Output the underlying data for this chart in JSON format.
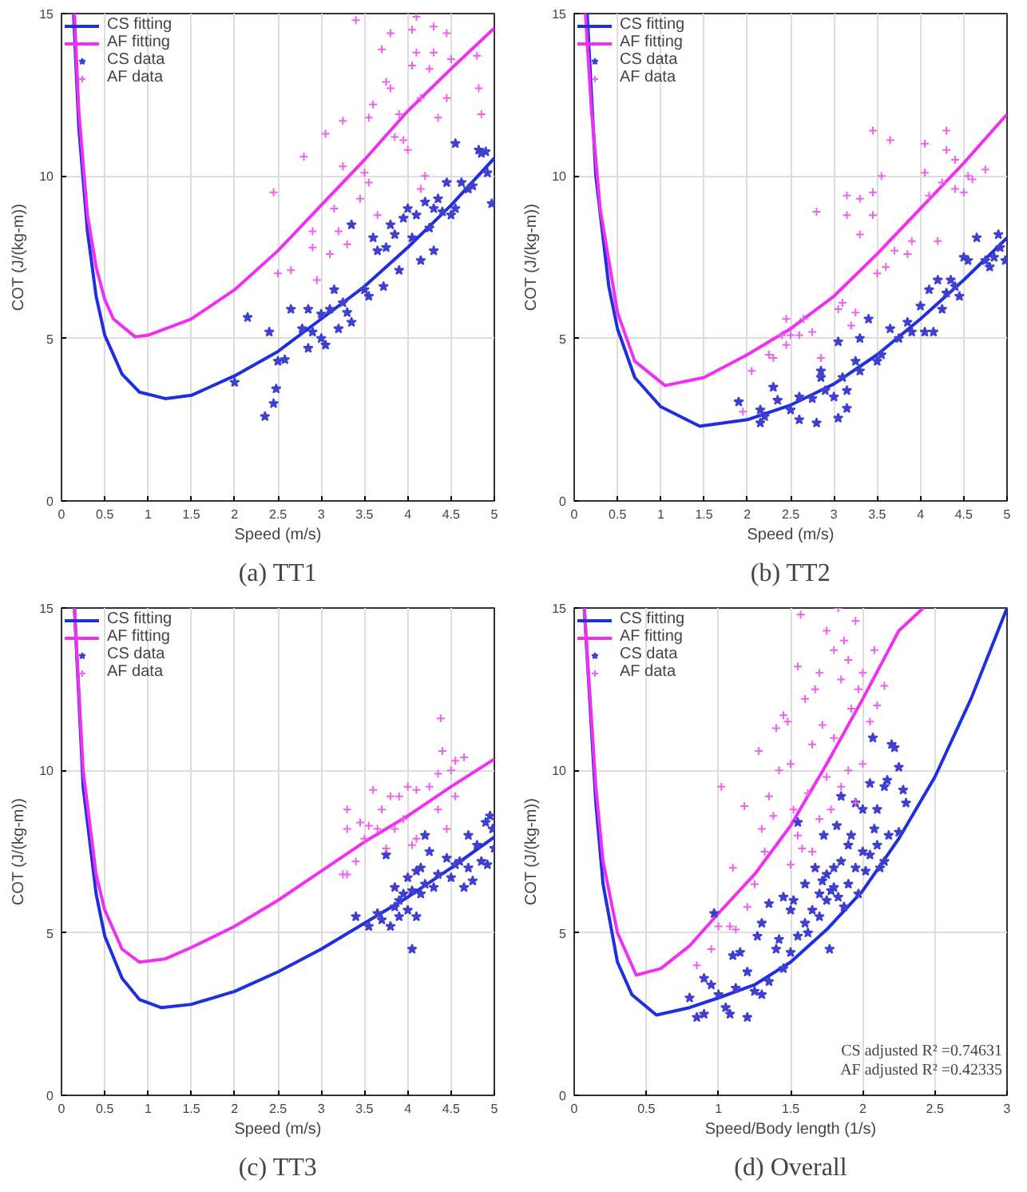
{
  "chart_data": [
    {
      "type": "scatter",
      "title": "(a) TT1",
      "xlabel": "Speed (m/s)",
      "ylabel": "COT (J/(kg-m))",
      "xlim": [
        0,
        5
      ],
      "ylim": [
        0,
        15
      ],
      "xticks": [
        0,
        0.5,
        1,
        1.5,
        2,
        2.5,
        3,
        3.5,
        4,
        4.5,
        5
      ],
      "yticks": [
        0,
        5,
        10,
        15
      ],
      "grid": true,
      "legend": "top left",
      "series": [
        {
          "name": "CS fitting",
          "type": "line",
          "color": "#1f2fe0",
          "x": [
            0.14,
            0.2,
            0.3,
            0.4,
            0.5,
            0.7,
            0.9,
            1.2,
            1.5,
            2,
            2.5,
            3,
            3.5,
            4,
            4.5,
            5
          ],
          "values": [
            15,
            11.5,
            8.3,
            6.3,
            5.1,
            3.9,
            3.35,
            3.15,
            3.25,
            3.85,
            4.6,
            5.6,
            6.6,
            7.8,
            9.1,
            10.55
          ]
        },
        {
          "name": "AF fitting",
          "type": "line",
          "color": "#f030f0",
          "x": [
            0.15,
            0.2,
            0.3,
            0.4,
            0.5,
            0.6,
            0.85,
            1,
            1.5,
            2,
            2.5,
            3,
            3.5,
            4,
            4.5,
            5
          ],
          "values": [
            15,
            12,
            8.8,
            7.2,
            6.2,
            5.6,
            5.05,
            5.1,
            5.6,
            6.5,
            7.7,
            9.1,
            10.5,
            12,
            13.3,
            14.55
          ]
        },
        {
          "name": "CS data",
          "type": "scatter",
          "marker": "star",
          "color": "#3f3fd0",
          "x": [
            2.0,
            2.15,
            2.35,
            2.4,
            2.45,
            2.48,
            2.5,
            2.58,
            2.65,
            2.78,
            2.85,
            2.85,
            2.9,
            3.0,
            3.0,
            3.05,
            3.1,
            3.15,
            3.2,
            3.25,
            3.3,
            3.35,
            3.35,
            3.5,
            3.55,
            3.6,
            3.65,
            3.72,
            3.75,
            3.8,
            3.85,
            3.9,
            3.95,
            4.0,
            4.05,
            4.1,
            4.15,
            4.2,
            4.25,
            4.3,
            4.3,
            4.35,
            4.4,
            4.45,
            4.5,
            4.55,
            4.55,
            4.62,
            4.7,
            4.75,
            4.82,
            4.85,
            4.9,
            4.92,
            4.97
          ],
          "values": [
            3.65,
            5.65,
            2.6,
            5.2,
            3.0,
            3.45,
            4.3,
            4.35,
            5.9,
            5.3,
            5.9,
            4.7,
            5.2,
            5.0,
            5.75,
            4.8,
            5.9,
            6.5,
            5.3,
            6.1,
            5.8,
            8.5,
            5.5,
            6.5,
            6.3,
            8.1,
            7.7,
            6.6,
            7.8,
            8.5,
            8.2,
            7.1,
            8.7,
            9.0,
            8.1,
            8.8,
            7.4,
            9.2,
            8.4,
            9.0,
            7.7,
            9.3,
            8.9,
            9.8,
            8.8,
            11.0,
            9.0,
            9.8,
            9.6,
            9.7,
            10.8,
            10.7,
            10.75,
            10.1,
            9.15
          ]
        },
        {
          "name": "AF data",
          "type": "scatter",
          "marker": "cross",
          "color": "#f060f0",
          "x": [
            2.45,
            2.5,
            2.65,
            2.8,
            2.9,
            2.9,
            2.95,
            3.05,
            3.1,
            3.15,
            3.2,
            3.25,
            3.25,
            3.3,
            3.4,
            3.45,
            3.5,
            3.55,
            3.55,
            3.6,
            3.65,
            3.7,
            3.75,
            3.8,
            3.8,
            3.85,
            3.9,
            3.95,
            4.0,
            4.05,
            4.05,
            4.1,
            4.1,
            4.15,
            4.15,
            4.2,
            4.25,
            4.3,
            4.3,
            4.35,
            4.45,
            4.45,
            4.5,
            4.8,
            4.82,
            4.85
          ],
          "values": [
            9.5,
            7.0,
            7.1,
            10.6,
            8.3,
            7.8,
            6.8,
            11.3,
            7.6,
            9.0,
            8.3,
            11.7,
            10.3,
            7.9,
            14.8,
            9.3,
            10.1,
            11.8,
            9.8,
            12.2,
            8.8,
            13.9,
            12.9,
            14.4,
            12.7,
            11.2,
            11.9,
            11.1,
            10.8,
            14.5,
            13.4,
            14.9,
            13.8,
            12.4,
            9.6,
            10.0,
            13.3,
            14.6,
            13.8,
            11.8,
            14.4,
            12.4,
            13.6,
            13.7,
            12.7,
            11.9
          ]
        }
      ]
    },
    {
      "type": "scatter",
      "title": "(b) TT2",
      "xlabel": "Speed (m/s)",
      "ylabel": "COT (J/(kg-m))",
      "xlim": [
        0,
        5
      ],
      "ylim": [
        0,
        15
      ],
      "xticks": [
        0,
        0.5,
        1,
        1.5,
        2,
        2.5,
        3,
        3.5,
        4,
        4.5,
        5
      ],
      "yticks": [
        0,
        5,
        10,
        15
      ],
      "grid": true,
      "legend": "top left",
      "series": [
        {
          "name": "CS fitting",
          "type": "line",
          "color": "#1f2fe0",
          "x": [
            0.15,
            0.25,
            0.4,
            0.5,
            0.7,
            1,
            1.45,
            2,
            2.5,
            3,
            3.5,
            4,
            4.5,
            5
          ],
          "values": [
            15,
            10,
            6.6,
            5.3,
            3.8,
            2.9,
            2.3,
            2.5,
            2.95,
            3.6,
            4.5,
            5.6,
            6.8,
            8.1
          ]
        },
        {
          "name": "AF fitting",
          "type": "line",
          "color": "#f030f0",
          "x": [
            0.13,
            0.2,
            0.3,
            0.5,
            0.7,
            1.05,
            1.5,
            2,
            2.5,
            3,
            3.5,
            4,
            4.5,
            5
          ],
          "values": [
            15,
            12,
            9,
            5.8,
            4.3,
            3.55,
            3.8,
            4.5,
            5.3,
            6.3,
            7.6,
            9.0,
            10.4,
            11.9
          ]
        },
        {
          "name": "CS data",
          "type": "scatter",
          "marker": "star",
          "color": "#3f3fd0",
          "x": [
            1.9,
            2.15,
            2.15,
            2.2,
            2.3,
            2.35,
            2.5,
            2.6,
            2.6,
            2.75,
            2.8,
            2.85,
            2.85,
            2.9,
            3.0,
            3.05,
            3.05,
            3.1,
            3.15,
            3.15,
            3.25,
            3.3,
            3.3,
            3.4,
            3.5,
            3.55,
            3.65,
            3.75,
            3.85,
            3.9,
            4.0,
            4.05,
            4.1,
            4.15,
            4.2,
            4.25,
            4.3,
            4.35,
            4.4,
            4.45,
            4.5,
            4.55,
            4.65,
            4.75,
            4.8,
            4.85,
            4.9,
            4.92,
            4.98
          ],
          "values": [
            3.05,
            2.8,
            2.4,
            2.6,
            3.5,
            3.1,
            2.8,
            2.5,
            3.2,
            3.15,
            2.4,
            3.8,
            4.0,
            3.4,
            3.2,
            4.9,
            2.55,
            3.8,
            2.85,
            3.4,
            4.3,
            5.0,
            4.0,
            5.6,
            4.3,
            4.5,
            5.3,
            5.0,
            5.5,
            5.2,
            6.0,
            5.2,
            6.5,
            5.2,
            6.8,
            5.9,
            6.4,
            6.8,
            6.6,
            6.3,
            7.5,
            7.4,
            8.1,
            7.4,
            7.2,
            7.5,
            8.2,
            7.8,
            7.4
          ]
        },
        {
          "name": "AF data",
          "type": "scatter",
          "marker": "cross",
          "color": "#f060f0",
          "x": [
            1.95,
            2.05,
            2.25,
            2.3,
            2.4,
            2.45,
            2.45,
            2.5,
            2.6,
            2.65,
            2.75,
            2.8,
            2.85,
            3.05,
            3.1,
            3.15,
            3.15,
            3.2,
            3.25,
            3.3,
            3.3,
            3.45,
            3.45,
            3.45,
            3.5,
            3.55,
            3.6,
            3.65,
            3.7,
            3.85,
            3.9,
            4.05,
            4.05,
            4.1,
            4.2,
            4.25,
            4.3,
            4.3,
            4.4,
            4.4,
            4.5,
            4.55,
            4.6,
            4.75
          ],
          "values": [
            2.75,
            4.0,
            4.5,
            4.4,
            5.1,
            5.6,
            4.8,
            5.1,
            5.1,
            5.6,
            5.2,
            8.9,
            4.4,
            5.9,
            6.1,
            8.8,
            9.4,
            5.4,
            5.8,
            8.2,
            9.3,
            11.4,
            9.5,
            8.8,
            7.0,
            10.0,
            7.2,
            11.1,
            7.7,
            7.6,
            8.0,
            11.0,
            10.1,
            9.4,
            8.0,
            9.8,
            11.4,
            10.8,
            10.5,
            9.6,
            9.5,
            10.0,
            9.9,
            10.2
          ]
        }
      ]
    },
    {
      "type": "scatter",
      "title": "(c) TT3",
      "xlabel": "Speed (m/s)",
      "ylabel": "COT (J/(kg-m))",
      "xlim": [
        0,
        5
      ],
      "ylim": [
        0,
        15
      ],
      "xticks": [
        0,
        0.5,
        1,
        1.5,
        2,
        2.5,
        3,
        3.5,
        4,
        4.5,
        5
      ],
      "yticks": [
        0,
        5,
        10,
        15
      ],
      "grid": true,
      "legend": "top left",
      "series": [
        {
          "name": "CS fitting",
          "type": "line",
          "color": "#1f2fe0",
          "x": [
            0.15,
            0.25,
            0.4,
            0.5,
            0.7,
            0.9,
            1.15,
            1.5,
            2,
            2.5,
            3,
            3.5,
            4,
            4.5,
            5
          ],
          "values": [
            15,
            9.5,
            6.2,
            4.9,
            3.6,
            2.95,
            2.7,
            2.8,
            3.2,
            3.8,
            4.5,
            5.3,
            6.1,
            7.0,
            7.95
          ]
        },
        {
          "name": "AF fitting",
          "type": "line",
          "color": "#f030f0",
          "x": [
            0.15,
            0.25,
            0.4,
            0.5,
            0.7,
            0.9,
            1.2,
            1.5,
            2,
            2.5,
            3,
            3.5,
            4,
            4.5,
            5
          ],
          "values": [
            15,
            10,
            6.8,
            5.7,
            4.5,
            4.1,
            4.2,
            4.55,
            5.2,
            6.0,
            6.9,
            7.8,
            8.6,
            9.5,
            10.35
          ]
        },
        {
          "name": "CS data",
          "type": "scatter",
          "marker": "star",
          "color": "#3f3fd0",
          "x": [
            3.4,
            3.55,
            3.65,
            3.7,
            3.75,
            3.8,
            3.85,
            3.85,
            3.9,
            3.9,
            3.95,
            4.0,
            4.0,
            4.05,
            4.05,
            4.1,
            4.1,
            4.15,
            4.15,
            4.2,
            4.2,
            4.25,
            4.3,
            4.35,
            4.45,
            4.5,
            4.55,
            4.6,
            4.65,
            4.7,
            4.7,
            4.75,
            4.8,
            4.85,
            4.9,
            4.92,
            4.95,
            4.98,
            5.0
          ],
          "values": [
            5.5,
            5.2,
            5.6,
            5.4,
            7.4,
            5.2,
            5.8,
            6.4,
            6.0,
            5.5,
            6.2,
            6.7,
            5.7,
            4.5,
            6.3,
            6.9,
            5.5,
            6.2,
            7.0,
            6.5,
            8.0,
            7.5,
            6.4,
            6.8,
            7.3,
            6.7,
            7.1,
            7.2,
            6.4,
            8.0,
            7.0,
            6.6,
            7.7,
            7.2,
            8.4,
            7.1,
            8.6,
            8.2,
            7.6
          ]
        },
        {
          "name": "AF data",
          "type": "scatter",
          "marker": "cross",
          "color": "#f060f0",
          "x": [
            3.25,
            3.3,
            3.3,
            3.3,
            3.4,
            3.45,
            3.5,
            3.55,
            3.6,
            3.65,
            3.7,
            3.75,
            3.8,
            3.85,
            3.9,
            3.95,
            4.0,
            4.05,
            4.1,
            4.1,
            4.25,
            4.35,
            4.35,
            4.38,
            4.4,
            4.45,
            4.5,
            4.55,
            4.65,
            4.55
          ],
          "values": [
            6.8,
            6.8,
            8.8,
            8.2,
            7.2,
            8.4,
            7.9,
            8.3,
            9.4,
            8.2,
            8.8,
            7.6,
            9.2,
            8.2,
            9.2,
            8.5,
            9.5,
            7.7,
            9.4,
            7.9,
            9.5,
            8.8,
            9.9,
            11.6,
            10.6,
            8.2,
            10.0,
            10.3,
            10.4,
            9.2
          ]
        }
      ]
    },
    {
      "type": "scatter",
      "title": "(d) Overall",
      "xlabel": "Speed/Body length (1/s)",
      "ylabel": "COT (J/(kg-m))",
      "xlim": [
        0,
        3
      ],
      "ylim": [
        0,
        15
      ],
      "xticks": [
        0,
        0.5,
        1,
        1.5,
        2,
        2.5,
        3
      ],
      "yticks": [
        0,
        5,
        10,
        15
      ],
      "grid": true,
      "legend": "top left",
      "annotations": [
        "CS adjusted R² =0.74631",
        "AF adjusted R² =0.42335"
      ],
      "series": [
        {
          "name": "CS fitting",
          "type": "line",
          "color": "#1f2fe0",
          "x": [
            0.07,
            0.15,
            0.2,
            0.3,
            0.4,
            0.57,
            0.8,
            1,
            1.25,
            1.5,
            1.75,
            2,
            2.25,
            2.5,
            2.75,
            3
          ],
          "values": [
            15,
            9,
            6.5,
            4.1,
            3.1,
            2.47,
            2.7,
            3.0,
            3.4,
            4.1,
            5.1,
            6.3,
            7.9,
            9.8,
            12.2,
            15
          ]
        },
        {
          "name": "AF fitting",
          "type": "line",
          "color": "#f030f0",
          "x": [
            0.07,
            0.15,
            0.2,
            0.3,
            0.43,
            0.6,
            0.8,
            1,
            1.25,
            1.5,
            1.75,
            2,
            2.25,
            2.42
          ],
          "values": [
            15,
            9.5,
            7.2,
            5.0,
            3.7,
            3.9,
            4.6,
            5.6,
            6.8,
            8.3,
            10.2,
            12.2,
            14.3,
            15
          ]
        },
        {
          "name": "CS data",
          "type": "scatter",
          "marker": "star",
          "color": "#3f3fd0",
          "x": [
            0.8,
            0.85,
            0.9,
            0.9,
            0.95,
            0.97,
            1.0,
            1.05,
            1.08,
            1.1,
            1.12,
            1.15,
            1.2,
            1.2,
            1.25,
            1.27,
            1.3,
            1.3,
            1.35,
            1.35,
            1.4,
            1.42,
            1.45,
            1.45,
            1.5,
            1.5,
            1.52,
            1.55,
            1.55,
            1.6,
            1.6,
            1.62,
            1.65,
            1.67,
            1.7,
            1.7,
            1.72,
            1.73,
            1.75,
            1.75,
            1.77,
            1.78,
            1.8,
            1.8,
            1.82,
            1.83,
            1.85,
            1.85,
            1.87,
            1.9,
            1.9,
            1.92,
            1.95,
            1.95,
            1.97,
            2.0,
            2.0,
            2.02,
            2.05,
            2.05,
            2.07,
            2.08,
            2.1,
            2.1,
            2.12,
            2.15,
            2.15,
            2.17,
            2.18,
            2.2,
            2.22,
            2.25,
            2.25,
            2.28,
            2.3
          ],
          "values": [
            3.0,
            2.4,
            2.5,
            3.6,
            3.4,
            5.6,
            3.1,
            2.7,
            2.5,
            4.3,
            3.3,
            4.4,
            2.4,
            3.8,
            3.2,
            4.9,
            3.1,
            5.3,
            3.5,
            5.9,
            4.5,
            4.8,
            3.9,
            6.1,
            4.4,
            5.7,
            6.0,
            4.9,
            8.4,
            5.3,
            6.5,
            5.0,
            5.7,
            7.0,
            5.5,
            6.2,
            6.6,
            8.0,
            6.0,
            6.8,
            4.5,
            6.3,
            7.0,
            6.4,
            8.3,
            6.1,
            7.2,
            9.2,
            5.8,
            7.7,
            6.5,
            8.0,
            9.0,
            7.0,
            6.2,
            8.8,
            7.5,
            6.9,
            9.6,
            7.4,
            11.0,
            8.2,
            7.7,
            8.8,
            7.0,
            9.5,
            7.2,
            9.7,
            8.0,
            10.8,
            10.7,
            8.1,
            10.1,
            9.4,
            9.0
          ]
        },
        {
          "name": "AF data",
          "type": "scatter",
          "marker": "cross",
          "color": "#f060f0",
          "x": [
            0.85,
            0.95,
            1.0,
            1.02,
            1.08,
            1.1,
            1.12,
            1.18,
            1.2,
            1.25,
            1.28,
            1.3,
            1.32,
            1.35,
            1.38,
            1.4,
            1.42,
            1.45,
            1.48,
            1.5,
            1.5,
            1.52,
            1.55,
            1.57,
            1.58,
            1.6,
            1.62,
            1.65,
            1.67,
            1.7,
            1.7,
            1.72,
            1.75,
            1.75,
            1.78,
            1.8,
            1.8,
            1.83,
            1.85,
            1.85,
            1.87,
            1.9,
            1.9,
            1.92,
            1.95,
            1.95,
            1.97,
            2.0,
            2.0,
            2.05,
            2.08,
            2.1,
            2.15,
            1.65,
            1.55
          ],
          "values": [
            4.0,
            4.5,
            5.2,
            9.5,
            5.2,
            7.0,
            5.1,
            8.9,
            5.8,
            6.5,
            10.6,
            8.2,
            7.5,
            9.2,
            8.6,
            11.3,
            10.0,
            11.7,
            11.5,
            7.1,
            10.2,
            8.8,
            13.2,
            14.8,
            7.6,
            12.2,
            9.3,
            10.8,
            12.5,
            8.5,
            13.0,
            11.4,
            9.8,
            14.3,
            8.8,
            13.7,
            11.0,
            15.0,
            9.5,
            12.8,
            14.0,
            10.0,
            13.4,
            11.9,
            14.6,
            9.0,
            12.5,
            10.2,
            13.0,
            11.5,
            13.7,
            12.0,
            12.6,
            7.5,
            8.0
          ]
        }
      ]
    }
  ]
}
